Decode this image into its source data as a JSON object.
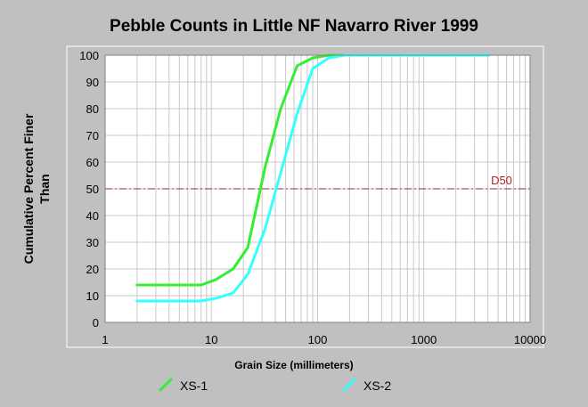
{
  "chart_data": {
    "type": "line",
    "title": "Pebble Counts in Little NF Navarro River 1999",
    "xlabel": "Grain Size (millimeters)",
    "ylabel_lines": [
      "Cumulative Percent Finer",
      "Than"
    ],
    "x_scale": "log",
    "xlim": [
      1,
      10000
    ],
    "ylim": [
      0,
      100
    ],
    "x_ticks": [
      1,
      10,
      100,
      1000,
      10000
    ],
    "x_tick_labels": [
      "1",
      "10",
      "100",
      "1000",
      "10000"
    ],
    "y_ticks": [
      0,
      10,
      20,
      30,
      40,
      50,
      60,
      70,
      80,
      90,
      100
    ],
    "y_tick_labels": [
      "0",
      "10",
      "20",
      "30",
      "40",
      "50",
      "60",
      "70",
      "80",
      "90",
      "100"
    ],
    "grid": true,
    "legend_position": "bottom",
    "reference_line": {
      "label": "D50",
      "y": 50,
      "color": "#b22222"
    },
    "series": [
      {
        "name": "XS-1",
        "color": "#33ee33",
        "x": [
          2,
          8,
          11,
          16,
          22,
          32,
          45,
          64,
          90,
          128,
          180,
          256,
          512,
          1024,
          4096
        ],
        "y": [
          14,
          14,
          16,
          20,
          28,
          58,
          80,
          96,
          99,
          100,
          100,
          100,
          100,
          100,
          100
        ]
      },
      {
        "name": "XS-2",
        "color": "#33ffff",
        "x": [
          2,
          8,
          11,
          16,
          22,
          32,
          45,
          64,
          90,
          128,
          180,
          256,
          512,
          1024,
          4096
        ],
        "y": [
          8,
          8,
          9,
          11,
          18,
          35,
          56,
          78,
          95,
          99,
          100,
          100,
          100,
          100,
          100
        ]
      }
    ]
  }
}
